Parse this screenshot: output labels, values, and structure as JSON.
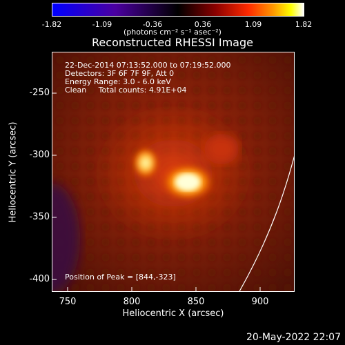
{
  "colorbar": {
    "ticks": [
      "-1.82",
      "-1.09",
      "-0.36",
      "0.36",
      "1.09",
      "1.82"
    ],
    "units": "(photons cm⁻² s⁻¹ asec⁻²)"
  },
  "title": "Reconstructed RHESSI Image",
  "info": {
    "time_range": "22-Dec-2014 07:13:52.000 to 07:19:52.000",
    "detectors": "Detectors: 3F 6F 7F 9F, Att 0",
    "energy": "Energy Range: 3.0 - 6.0 keV",
    "method": "Clean     Total counts: 4.91E+04",
    "peak": "Position of Peak = [844,-323]"
  },
  "axes": {
    "xlabel": "Heliocentric X (arcsec)",
    "ylabel": "Heliocentric Y (arcsec)",
    "xticks": [
      "750",
      "800",
      "850",
      "900"
    ],
    "yticks": [
      "-250",
      "-300",
      "-350",
      "-400"
    ],
    "xlim": [
      737,
      927
    ],
    "ylim": [
      -410,
      -222
    ]
  },
  "timestamp": "20-May-2022 22:07",
  "colors": {
    "background": "#000000",
    "image_base": "#6a1a08",
    "peak": "#ffffc0"
  }
}
